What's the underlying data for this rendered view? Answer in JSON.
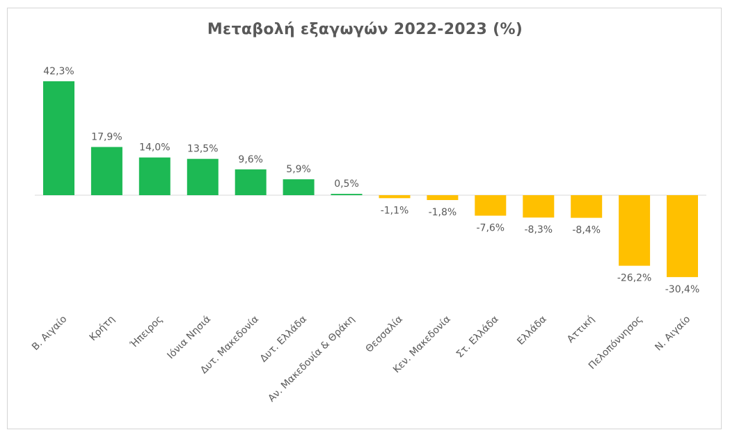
{
  "chart_data": {
    "type": "bar",
    "title": "Μεταβολή εξαγωγών 2022-2023 (%)",
    "categories": [
      "Β. Αιγαίο",
      "Κρήτη",
      "Ήπειρος",
      "Ιόνια Νησιά",
      "Δυτ. Μακεδονία",
      "Δυτ. Ελλάδα",
      "Αν. Μακεδονία & Θράκη",
      "Θεσσαλία",
      "Κεν. Μακεδονία",
      "Στ. Ελλάδα",
      "Ελλάδα",
      "Αττική",
      "Πελοπόννησος",
      "Ν. Αιγαίο"
    ],
    "values": [
      42.3,
      17.9,
      14.0,
      13.5,
      9.6,
      5.9,
      0.5,
      -1.1,
      -1.8,
      -7.6,
      -8.3,
      -8.4,
      -26.2,
      -30.4
    ],
    "data_labels": [
      "42,3%",
      "17,9%",
      "14,0%",
      "13,5%",
      "9,6%",
      "5,9%",
      "0,5%",
      "-1,1%",
      "-1,8%",
      "-7,6%",
      "-8,3%",
      "-8,4%",
      "-26,2%",
      "-30,4%"
    ],
    "colors": {
      "positive": "#1db954",
      "negative": "#ffc000",
      "axis": "#d9d9d9",
      "text": "#595959"
    },
    "xlabel": "",
    "ylabel": "",
    "grid": false,
    "legend": "none"
  }
}
